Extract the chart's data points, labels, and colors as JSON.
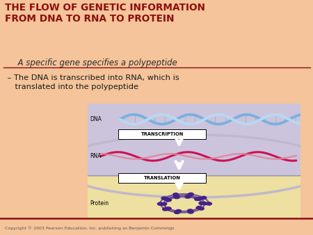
{
  "bg_color": "#f5c49a",
  "title_text": "THE FLOW OF GENETIC INFORMATION\nFROM DNA TO RNA TO PROTEIN",
  "title_color": "#8b1010",
  "subtitle_text": "  A specific gene specifies a polypeptide",
  "subtitle_color": "#2c2c2c",
  "bullet_text": " – The DNA is transcribed into RNA, which is\n    translated into the polypeptide",
  "bullet_color": "#1a1a1a",
  "copyright_text": "Copyright © 2003 Pearson Education, Inc. publishing as Benjamin Cummings",
  "divider_color": "#8b1010",
  "diagram_bg_purple": "#ccc4dc",
  "diagram_bg_yellow": "#ede0a0",
  "diagram_border": "#b0a8c0",
  "arrow_color": "#ffffff",
  "label_dna": "DNA",
  "label_rna": "RNA",
  "label_protein": "Protein",
  "label_transcription": "TRANSCRIPTION",
  "label_translation": "TRANSLATION",
  "dna_color1": "#7ab0e0",
  "dna_color2": "#b8d8f0",
  "rna_color1": "#cc1155",
  "rna_color2": "#e08098",
  "protein_color": "#442288"
}
